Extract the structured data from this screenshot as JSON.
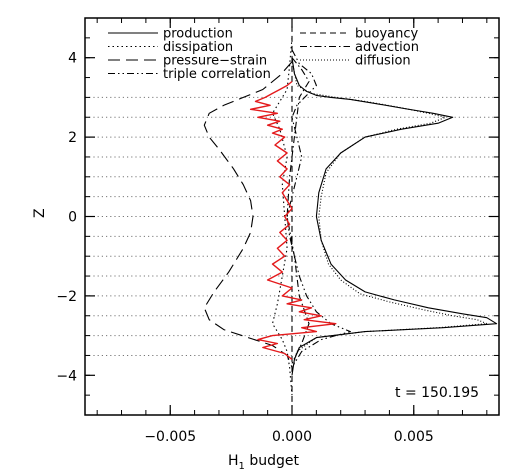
{
  "chart_data": {
    "type": "line",
    "title": "",
    "xlabel": "H",
    "xlabel_sub": "1",
    "xlabel_rest": " budget",
    "ylabel": "Z",
    "xlim": [
      -0.0085,
      0.0085
    ],
    "ylim": [
      -5,
      5
    ],
    "xticks": [
      -0.005,
      0.0,
      0.005
    ],
    "xtick_labels": [
      "−0.005",
      "0.000",
      "0.005"
    ],
    "yticks": [
      -4,
      -2,
      0,
      2,
      4
    ],
    "ytick_labels": [
      "−4",
      "−2",
      "0",
      "2",
      "4"
    ],
    "grid": "dotted horizontal lines",
    "hlines": [
      -3.5,
      -3,
      -2.5,
      -2,
      -1.5,
      -1,
      -0.5,
      0,
      0.5,
      1,
      1.5,
      2,
      2.5,
      3
    ],
    "annotation": "t = 150.195",
    "legend": "top",
    "series": [
      {
        "name": "production",
        "style": "solid",
        "color": "#000000",
        "x": [
          0.0,
          0.0001,
          0.0003,
          0.0006,
          0.001,
          0.0016,
          0.0024,
          0.0034,
          0.0046,
          0.0058,
          0.0066,
          0.006,
          0.0045,
          0.003,
          0.002,
          0.0014,
          0.0011,
          0.001,
          0.0012,
          0.0016,
          0.0022,
          0.003,
          0.0042,
          0.0056,
          0.007,
          0.008,
          0.0084,
          0.0062,
          0.003,
          0.001,
          0.0003,
          0.0001,
          0.0
        ],
        "y": [
          4.0,
          3.6,
          3.3,
          3.15,
          3.05,
          3.0,
          2.95,
          2.85,
          2.72,
          2.6,
          2.5,
          2.35,
          2.2,
          2.0,
          1.6,
          1.2,
          0.6,
          0.0,
          -0.6,
          -1.2,
          -1.6,
          -1.9,
          -2.1,
          -2.3,
          -2.45,
          -2.55,
          -2.7,
          -2.8,
          -2.9,
          -3.05,
          -3.3,
          -3.6,
          -4.0
        ]
      },
      {
        "name": "dissipation",
        "style": "dotted",
        "color": "#000000",
        "x": [
          0.0,
          -0.0001,
          -0.0002,
          -0.0005,
          -0.0008,
          -0.0005,
          -0.0002,
          -0.0004,
          -0.0003,
          -0.0002,
          -0.0004,
          -0.0006,
          -0.0008,
          -0.0004,
          -0.0002,
          -0.0001,
          0.0
        ],
        "y": [
          4.5,
          3.8,
          3.2,
          2.9,
          2.6,
          2.2,
          1.5,
          0.8,
          0.0,
          -0.8,
          -1.5,
          -2.2,
          -2.7,
          -3.1,
          -3.4,
          -3.8,
          -4.5
        ]
      },
      {
        "name": "pressure−strain",
        "style": "long-dash",
        "color": "#000000",
        "x": [
          0.0,
          -0.0005,
          -0.0012,
          -0.002,
          -0.0028,
          -0.0034,
          -0.0036,
          -0.0034,
          -0.003,
          -0.0024,
          -0.002,
          -0.0017,
          -0.0016,
          -0.0017,
          -0.002,
          -0.0026,
          -0.0032,
          -0.0036,
          -0.0034,
          -0.0028,
          -0.0018,
          -0.0008,
          -0.0002,
          0.0
        ],
        "y": [
          3.9,
          3.55,
          3.2,
          3.0,
          2.8,
          2.6,
          2.3,
          2.0,
          1.7,
          1.2,
          0.8,
          0.4,
          0.0,
          -0.4,
          -0.8,
          -1.4,
          -1.9,
          -2.3,
          -2.6,
          -2.85,
          -3.05,
          -3.25,
          -3.5,
          -3.8
        ]
      },
      {
        "name": "triple correlation",
        "style": "dash-dot-dot",
        "color": "#000000",
        "x": [
          0.0,
          0.0003,
          0.0008,
          0.001,
          0.0006,
          0.0002,
          0.0,
          0.0002,
          0.0004,
          0.0002,
          0.0,
          -0.0002,
          -0.0001,
          0.0001,
          0.0003,
          0.0006,
          0.001,
          0.0016,
          0.0024,
          0.0012,
          0.0004,
          0.0
        ],
        "y": [
          4.2,
          3.85,
          3.6,
          3.3,
          3.05,
          2.8,
          2.5,
          2.0,
          1.5,
          1.0,
          0.5,
          0.0,
          -0.5,
          -1.0,
          -1.5,
          -2.0,
          -2.4,
          -2.7,
          -2.9,
          -3.1,
          -3.4,
          -3.8
        ]
      },
      {
        "name": "buoyancy",
        "style": "dash",
        "color": "#000000",
        "x": [
          0.0,
          0.0,
          0.0,
          0.0
        ],
        "y": [
          4.8,
          1.5,
          -1.5,
          -4.8
        ]
      },
      {
        "name": "advection",
        "style": "dash-dot",
        "color": "#000000",
        "x": [
          0.0,
          0.0004,
          0.0007,
          0.0003,
          0.0001,
          -0.0001,
          -0.0002,
          0.0001,
          0.0003,
          0.0007,
          0.0004,
          0.0
        ],
        "y": [
          4.0,
          3.7,
          3.4,
          3.0,
          2.0,
          1.0,
          0.0,
          -1.0,
          -2.0,
          -2.7,
          -3.2,
          -3.7
        ]
      },
      {
        "name": "diffusion",
        "style": "fine-dotted",
        "color": "#000000",
        "x": [
          0.0,
          0.0002,
          0.0008,
          0.0018,
          0.003,
          0.0044,
          0.0056,
          0.0063,
          0.0057,
          0.0043,
          0.003,
          0.002,
          0.0014,
          0.0012,
          0.0011,
          0.0012,
          0.0015,
          0.002,
          0.0028,
          0.004,
          0.0054,
          0.0066,
          0.0076,
          0.008,
          0.006,
          0.003,
          0.001,
          0.0002,
          0.0
        ],
        "y": [
          3.95,
          3.3,
          3.1,
          3.0,
          2.9,
          2.75,
          2.6,
          2.5,
          2.35,
          2.2,
          2.0,
          1.6,
          1.1,
          0.5,
          0.0,
          -0.6,
          -1.2,
          -1.6,
          -1.95,
          -2.15,
          -2.35,
          -2.5,
          -2.6,
          -2.7,
          -2.8,
          -2.9,
          -3.05,
          -3.4,
          -3.9
        ]
      },
      {
        "name": "",
        "style": "solid",
        "color": "#e41a1c",
        "x": [
          0.0,
          -0.0002,
          -0.0005,
          -0.0008,
          -0.0011,
          -0.0015,
          -0.0009,
          -0.0017,
          -0.0006,
          -0.0014,
          -0.0005,
          -0.001,
          -0.0004,
          -0.0008,
          -0.0003,
          -0.0007,
          -0.0002,
          -0.0006,
          -0.0002,
          -0.0005,
          -0.0001,
          -0.0004,
          -0.0002,
          0.0,
          -0.0003,
          -0.0001,
          -0.0005,
          -0.0002,
          -0.0006,
          -0.0003,
          -0.0008,
          -0.0004,
          -0.001,
          0.0,
          -0.0004,
          0.0004,
          -0.0002,
          0.0008,
          0.0003,
          0.0012,
          0.0005,
          0.0018,
          0.0004,
          0.001,
          -0.0008,
          -0.0014,
          -0.0006,
          -0.0012,
          -0.0003,
          0.0
        ],
        "y": [
          3.4,
          3.3,
          3.2,
          3.1,
          3.0,
          2.9,
          2.8,
          2.7,
          2.6,
          2.5,
          2.4,
          2.3,
          2.2,
          2.1,
          2.0,
          1.8,
          1.6,
          1.4,
          1.2,
          1.0,
          0.8,
          0.6,
          0.4,
          0.2,
          0.0,
          -0.2,
          -0.4,
          -0.6,
          -0.8,
          -1.0,
          -1.2,
          -1.4,
          -1.6,
          -1.8,
          -2.0,
          -2.1,
          -2.2,
          -2.3,
          -2.4,
          -2.5,
          -2.6,
          -2.7,
          -2.8,
          -2.9,
          -3.0,
          -3.1,
          -3.2,
          -3.3,
          -3.45,
          -3.6
        ]
      }
    ]
  }
}
